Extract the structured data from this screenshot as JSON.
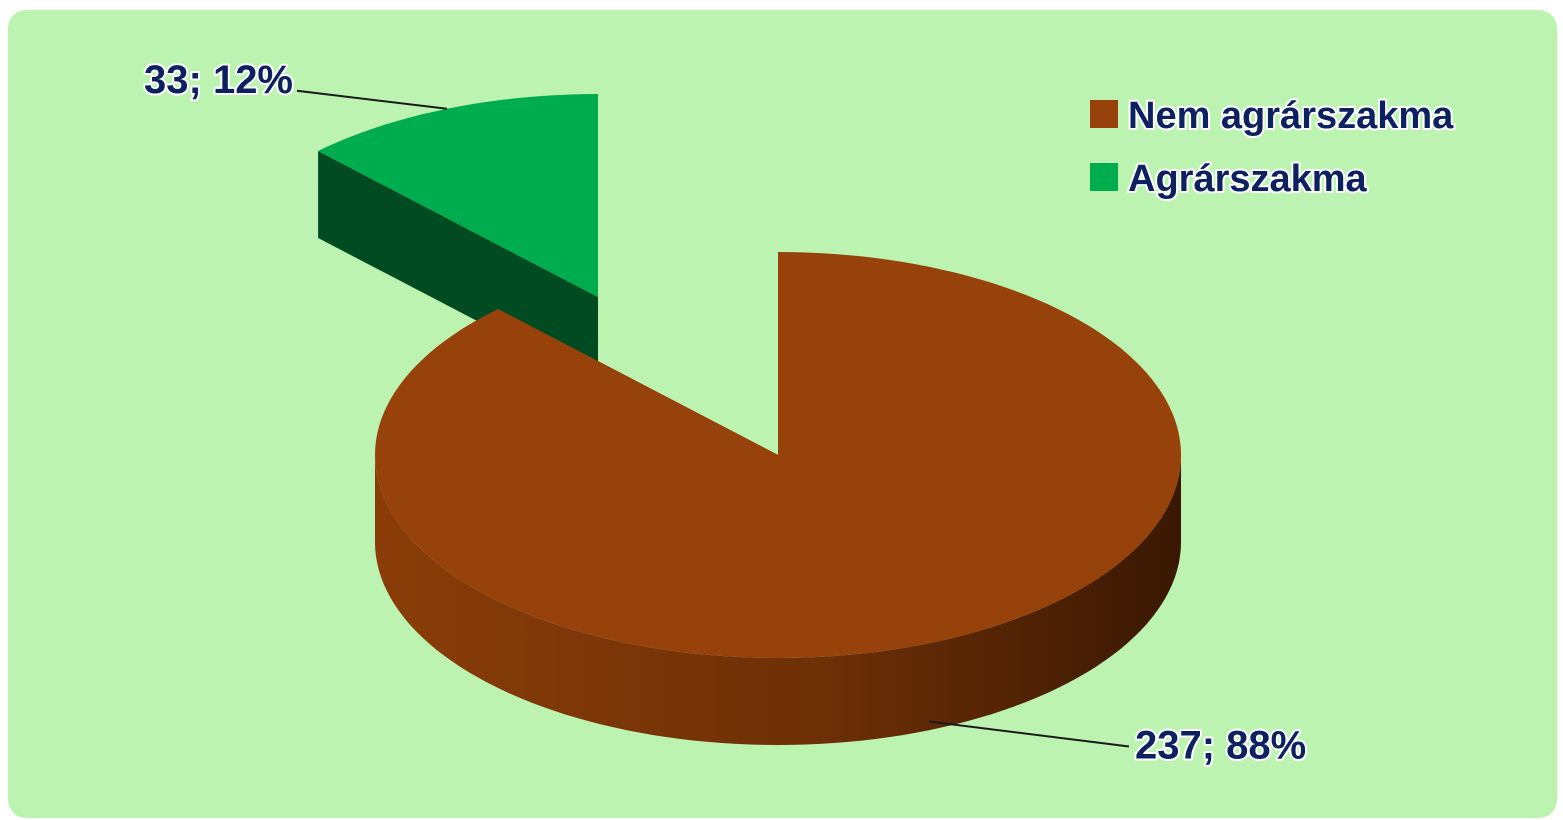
{
  "chart_data": {
    "type": "pie",
    "style": "3d-exploded",
    "title": "",
    "slices": [
      {
        "name": "Nem agrárszakma",
        "value": 237,
        "percent": 88,
        "label": "237; 88%",
        "color": "#96420a",
        "side_color": "#6a2d06"
      },
      {
        "name": "Agrárszakma",
        "value": 33,
        "percent": 12,
        "label": "33; 12%",
        "color": "#00ad4e",
        "side_color": "#004b21"
      }
    ],
    "legend": {
      "position": "top-right",
      "items": [
        {
          "label": "Nem agrárszakma",
          "color": "#96420a"
        },
        {
          "label": "Agrárszakma",
          "color": "#00ad4e"
        }
      ]
    }
  },
  "colors": {
    "plot_background": "#bdf3b0",
    "label_text": "#0d2060"
  }
}
